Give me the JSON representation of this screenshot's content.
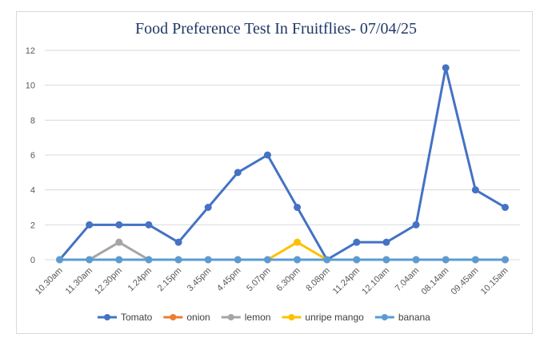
{
  "chart_data": {
    "type": "line",
    "title": "Food Preference Test In Fruitflies- 07/04/25",
    "xlabel": "",
    "ylabel": "",
    "ylim": [
      0,
      12
    ],
    "yticks": [
      0,
      2,
      4,
      6,
      8,
      10,
      12
    ],
    "grid": "horizontal",
    "legend_position": "bottom",
    "categories": [
      "10.30am",
      "11.30am",
      "12.30pm",
      "1.24pm",
      "2.15pm",
      "3.45pm",
      "4.45pm",
      "5.07pm",
      "6.30pm",
      "8.08pm",
      "11.24pm",
      "12.10am",
      "7.04am",
      "08.14am",
      "09.45am",
      "10.15am"
    ],
    "series": [
      {
        "name": "Tomato",
        "color": "#4472c4",
        "values": [
          0,
          2,
          2,
          2,
          1,
          3,
          5,
          6,
          3,
          0,
          1,
          1,
          2,
          11,
          4,
          3
        ]
      },
      {
        "name": "onion",
        "color": "#ed7d31",
        "values": [
          0,
          0,
          0,
          0,
          0,
          0,
          0,
          0,
          0,
          0,
          0,
          0,
          0,
          0,
          0,
          0
        ]
      },
      {
        "name": "lemon",
        "color": "#a5a5a5",
        "values": [
          0,
          0,
          1,
          0,
          0,
          0,
          0,
          0,
          0,
          0,
          0,
          0,
          0,
          0,
          0,
          0
        ]
      },
      {
        "name": "unripe mango",
        "color": "#ffc000",
        "values": [
          0,
          0,
          0,
          0,
          0,
          0,
          0,
          0,
          1,
          0,
          0,
          0,
          0,
          0,
          0,
          0
        ]
      },
      {
        "name": "banana",
        "color": "#5b9bd5",
        "values": [
          0,
          0,
          0,
          0,
          0,
          0,
          0,
          0,
          0,
          0,
          0,
          0,
          0,
          0,
          0,
          0
        ]
      }
    ]
  }
}
